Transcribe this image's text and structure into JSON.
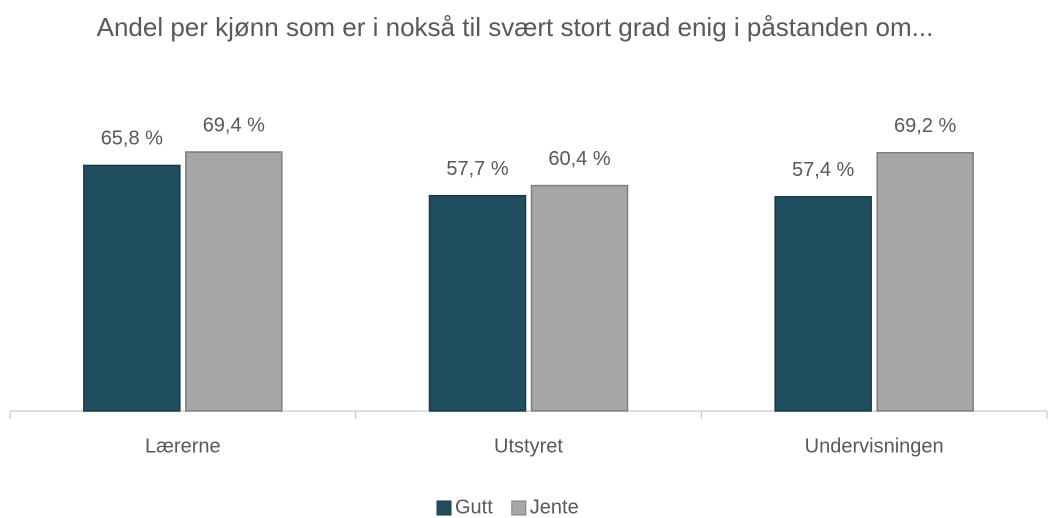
{
  "chart_data": {
    "type": "bar",
    "title": "Andel per kjønn som er i nokså til svært stort grad enig i påstanden om...",
    "categories": [
      "Lærerne",
      "Utstyret",
      "Undervisningen"
    ],
    "series": [
      {
        "name": "Gutt",
        "color": "#1f4e5f",
        "values": [
          65.8,
          57.7,
          57.4
        ],
        "value_labels": [
          "65,8 %",
          "57,7 %",
          "57,4 %"
        ]
      },
      {
        "name": "Jente",
        "color": "#a6a6a6",
        "values": [
          69.4,
          60.4,
          69.2
        ],
        "value_labels": [
          "69,4 %",
          "60,4 %",
          "69,2 %"
        ]
      }
    ],
    "legend": "bottom"
  }
}
